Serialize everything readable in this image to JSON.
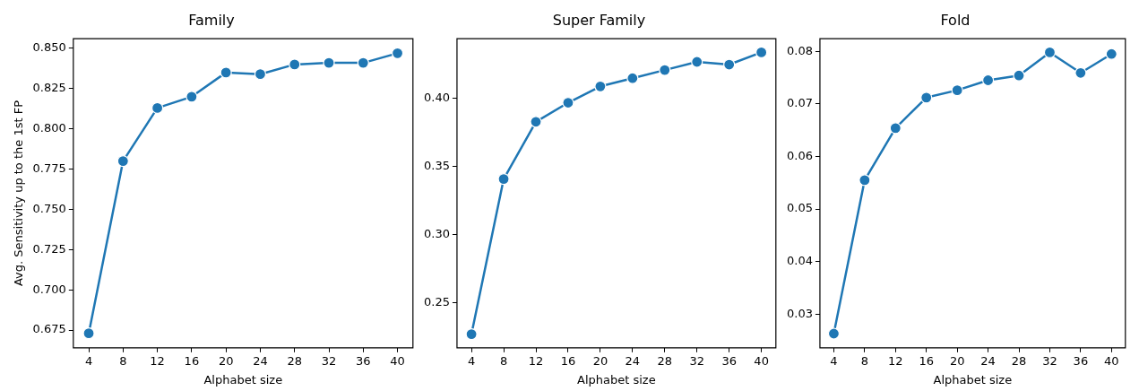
{
  "chart_data": [
    {
      "type": "line",
      "title": "Family",
      "xlabel": "Alphabet size",
      "ylabel": "Avg. Sensitivity up to the 1st FP",
      "x": [
        4,
        8,
        12,
        16,
        20,
        24,
        28,
        32,
        36,
        40
      ],
      "series": [
        {
          "color": "#1f77b4",
          "values": [
            0.673,
            0.78,
            0.813,
            0.82,
            0.835,
            0.834,
            0.84,
            0.841,
            0.841,
            0.847
          ]
        }
      ],
      "xlim": [
        2.2,
        41.8
      ],
      "xticks": [
        4,
        8,
        12,
        16,
        20,
        24,
        28,
        32,
        36,
        40
      ],
      "ylim": [
        0.664,
        0.856
      ],
      "yticks": [
        {
          "value": 0.675,
          "label": "0.675"
        },
        {
          "value": 0.7,
          "label": "0.700"
        },
        {
          "value": 0.725,
          "label": "0.725"
        },
        {
          "value": 0.75,
          "label": "0.750"
        },
        {
          "value": 0.775,
          "label": "0.775"
        },
        {
          "value": 0.8,
          "label": "0.800"
        },
        {
          "value": 0.825,
          "label": "0.825"
        },
        {
          "value": 0.85,
          "label": "0.850"
        }
      ],
      "marker": "circle",
      "grid": false,
      "legend": false
    },
    {
      "type": "line",
      "title": "Super Family",
      "xlabel": "Alphabet size",
      "x": [
        4,
        8,
        12,
        16,
        20,
        24,
        28,
        32,
        36,
        40
      ],
      "series": [
        {
          "color": "#1f77b4",
          "values": [
            0.227,
            0.341,
            0.383,
            0.397,
            0.409,
            0.415,
            0.421,
            0.427,
            0.425,
            0.434
          ]
        }
      ],
      "xlim": [
        2.2,
        41.8
      ],
      "xticks": [
        4,
        8,
        12,
        16,
        20,
        24,
        28,
        32,
        36,
        40
      ],
      "ylim": [
        0.217,
        0.444
      ],
      "yticks": [
        {
          "value": 0.25,
          "label": "0.25"
        },
        {
          "value": 0.3,
          "label": "0.30"
        },
        {
          "value": 0.35,
          "label": "0.35"
        },
        {
          "value": 0.4,
          "label": "0.40"
        }
      ],
      "marker": "circle",
      "grid": false,
      "legend": false
    },
    {
      "type": "line",
      "title": "Fold",
      "xlabel": "Alphabet size",
      "x": [
        4,
        8,
        12,
        16,
        20,
        24,
        28,
        32,
        36,
        40
      ],
      "series": [
        {
          "color": "#1f77b4",
          "values": [
            0.0263,
            0.0555,
            0.0654,
            0.0712,
            0.0726,
            0.0745,
            0.0754,
            0.0798,
            0.0759,
            0.0795
          ]
        }
      ],
      "xlim": [
        2.2,
        41.8
      ],
      "xticks": [
        4,
        8,
        12,
        16,
        20,
        24,
        28,
        32,
        36,
        40
      ],
      "ylim": [
        0.0236,
        0.0824
      ],
      "yticks": [
        0.03,
        0.04,
        0.05,
        0.06,
        0.07,
        0.08
      ],
      "marker": "circle",
      "grid": false,
      "legend": false
    }
  ]
}
